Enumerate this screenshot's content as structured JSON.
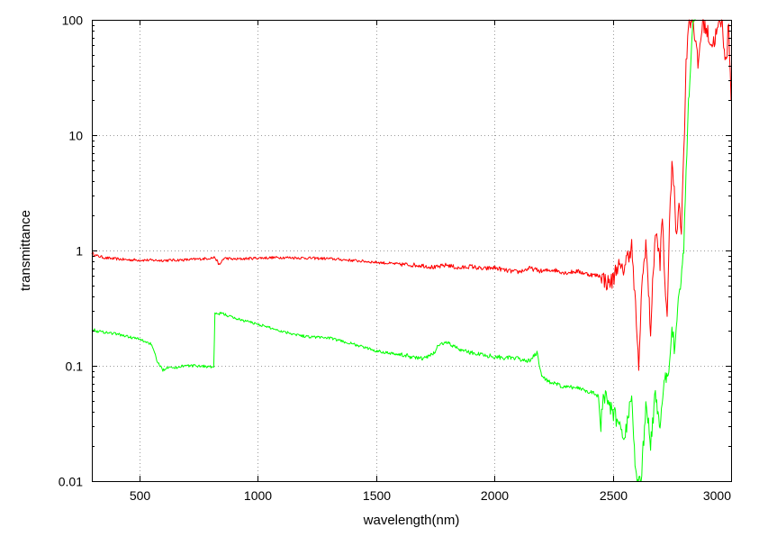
{
  "chart_data": {
    "type": "line",
    "title": "",
    "xlabel": "wavelength(nm)",
    "ylabel": "transmittance",
    "xlim": [
      300,
      3000
    ],
    "ylim": [
      0.01,
      100
    ],
    "yscale": "log",
    "grid": true,
    "legend": "none",
    "x_ticks": [
      500,
      1000,
      1500,
      2000,
      2500,
      3000
    ],
    "x_tick_labels": [
      "500",
      "1000",
      "1500",
      "2000",
      "2500",
      "3000"
    ],
    "y_ticks": [
      0.01,
      0.1,
      1,
      10,
      100
    ],
    "y_tick_labels": [
      "0.01",
      "0.1",
      "1",
      "10",
      "100"
    ],
    "series": [
      {
        "color": "#ff0000",
        "noise": 0.012,
        "points": [
          [
            300,
            0.95
          ],
          [
            320,
            0.9
          ],
          [
            360,
            0.86
          ],
          [
            450,
            0.83
          ],
          [
            600,
            0.82
          ],
          [
            700,
            0.83
          ],
          [
            780,
            0.85
          ],
          [
            820,
            0.87
          ],
          [
            840,
            0.74
          ],
          [
            850,
            0.82
          ],
          [
            860,
            0.86
          ],
          [
            900,
            0.84
          ],
          [
            1000,
            0.86
          ],
          [
            1100,
            0.87
          ],
          [
            1200,
            0.86
          ],
          [
            1300,
            0.85
          ],
          [
            1400,
            0.82
          ],
          [
            1500,
            0.79
          ],
          [
            1600,
            0.76
          ],
          [
            1700,
            0.74
          ],
          [
            1750,
            0.71
          ],
          [
            1800,
            0.75
          ],
          [
            1850,
            0.7
          ],
          [
            1900,
            0.73
          ],
          [
            1950,
            0.69
          ],
          [
            2000,
            0.71
          ],
          [
            2050,
            0.67
          ],
          [
            2100,
            0.65
          ],
          [
            2150,
            0.7
          ],
          [
            2200,
            0.66
          ],
          [
            2250,
            0.68
          ],
          [
            2300,
            0.64
          ],
          [
            2350,
            0.66
          ],
          [
            2400,
            0.62
          ],
          [
            2450,
            0.6
          ],
          [
            2480,
            0.52
          ],
          [
            2500,
            0.55
          ],
          [
            2520,
            0.75
          ],
          [
            2540,
            0.65
          ],
          [
            2560,
            0.85
          ],
          [
            2580,
            1.1
          ],
          [
            2590,
            0.5
          ],
          [
            2600,
            0.25
          ],
          [
            2610,
            0.08
          ],
          [
            2620,
            0.4
          ],
          [
            2640,
            1.2
          ],
          [
            2660,
            0.2
          ],
          [
            2680,
            1.5
          ],
          [
            2700,
            0.8
          ],
          [
            2710,
            2.0
          ],
          [
            2720,
            0.5
          ],
          [
            2730,
            0.3
          ],
          [
            2740,
            1.5
          ],
          [
            2750,
            6.5
          ],
          [
            2760,
            3.0
          ],
          [
            2770,
            1.2
          ],
          [
            2780,
            3.0
          ],
          [
            2790,
            1.5
          ],
          [
            2800,
            7.0
          ],
          [
            2810,
            40.0
          ],
          [
            2820,
            100.0
          ],
          [
            2840,
            100.0
          ],
          [
            2860,
            40.0
          ],
          [
            2880,
            100.0
          ],
          [
            2920,
            60.0
          ],
          [
            2960,
            100.0
          ],
          [
            2980,
            40.0
          ],
          [
            2990,
            100.0
          ],
          [
            3000,
            20.0
          ]
        ]
      },
      {
        "color": "#00ff00",
        "noise": 0.012,
        "points": [
          [
            300,
            0.21
          ],
          [
            320,
            0.2
          ],
          [
            400,
            0.19
          ],
          [
            500,
            0.17
          ],
          [
            550,
            0.155
          ],
          [
            580,
            0.105
          ],
          [
            600,
            0.092
          ],
          [
            630,
            0.1
          ],
          [
            650,
            0.095
          ],
          [
            680,
            0.1
          ],
          [
            750,
            0.1
          ],
          [
            800,
            0.098
          ],
          [
            815,
            0.098
          ],
          [
            820,
            0.28
          ],
          [
            850,
            0.285
          ],
          [
            900,
            0.26
          ],
          [
            1000,
            0.23
          ],
          [
            1100,
            0.2
          ],
          [
            1200,
            0.18
          ],
          [
            1300,
            0.175
          ],
          [
            1400,
            0.155
          ],
          [
            1500,
            0.135
          ],
          [
            1600,
            0.125
          ],
          [
            1650,
            0.12
          ],
          [
            1700,
            0.115
          ],
          [
            1750,
            0.13
          ],
          [
            1760,
            0.15
          ],
          [
            1800,
            0.16
          ],
          [
            1850,
            0.14
          ],
          [
            1900,
            0.13
          ],
          [
            2000,
            0.12
          ],
          [
            2100,
            0.115
          ],
          [
            2150,
            0.11
          ],
          [
            2180,
            0.13
          ],
          [
            2200,
            0.08
          ],
          [
            2250,
            0.07
          ],
          [
            2300,
            0.065
          ],
          [
            2350,
            0.065
          ],
          [
            2400,
            0.06
          ],
          [
            2440,
            0.055
          ],
          [
            2450,
            0.028
          ],
          [
            2460,
            0.055
          ],
          [
            2500,
            0.04
          ],
          [
            2550,
            0.025
          ],
          [
            2580,
            0.05
          ],
          [
            2600,
            0.01
          ],
          [
            2620,
            0.009
          ],
          [
            2640,
            0.05
          ],
          [
            2660,
            0.02
          ],
          [
            2680,
            0.06
          ],
          [
            2700,
            0.03
          ],
          [
            2720,
            0.07
          ],
          [
            2740,
            0.1
          ],
          [
            2750,
            0.25
          ],
          [
            2760,
            0.15
          ],
          [
            2780,
            0.4
          ],
          [
            2800,
            1.0
          ],
          [
            2810,
            5.0
          ],
          [
            2820,
            20.0
          ],
          [
            2840,
            100.0
          ],
          [
            2850,
            100.0
          ]
        ]
      }
    ]
  }
}
